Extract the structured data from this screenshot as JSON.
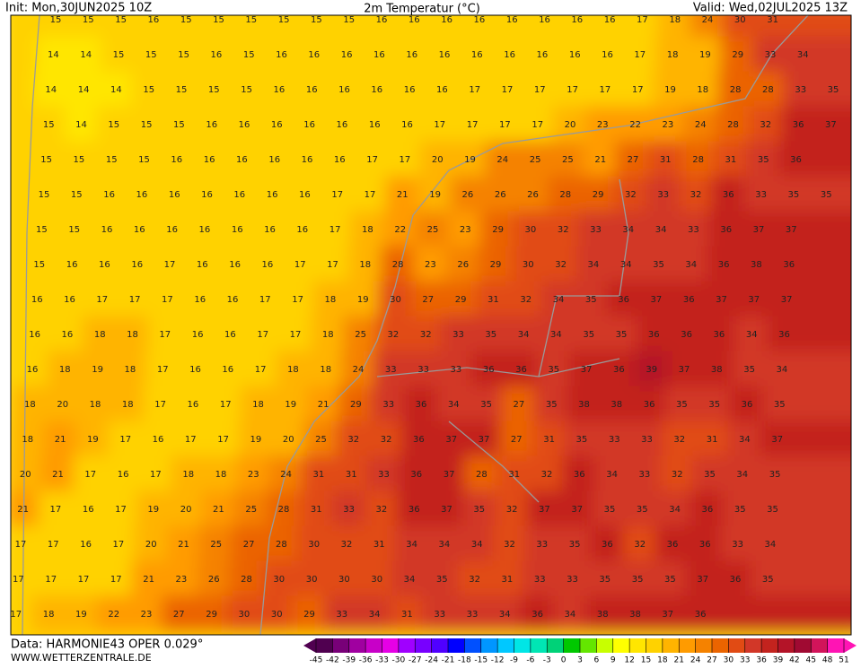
{
  "header": {
    "init": "Init: Mon,30JUN2025 10Z",
    "title": "2m Temperatur (°C)",
    "valid": "Valid: Wed,02JUL2025 13Z"
  },
  "field": {
    "rows": [
      [
        15,
        15,
        15,
        16,
        15,
        15,
        15,
        15,
        15,
        15,
        16,
        16,
        16,
        16,
        16,
        16,
        16,
        16,
        17,
        18,
        24,
        30,
        31
      ],
      [
        14,
        14,
        15,
        15,
        15,
        16,
        15,
        16,
        16,
        16,
        16,
        16,
        16,
        16,
        16,
        16,
        16,
        16,
        17,
        18,
        19,
        29,
        33,
        34
      ],
      [
        14,
        14,
        14,
        15,
        15,
        15,
        15,
        16,
        16,
        16,
        16,
        16,
        16,
        17,
        17,
        17,
        17,
        17,
        17,
        19,
        18,
        28,
        28,
        33,
        35
      ],
      [
        15,
        14,
        15,
        15,
        15,
        16,
        16,
        16,
        16,
        16,
        16,
        16,
        17,
        17,
        17,
        17,
        20,
        23,
        22,
        23,
        24,
        28,
        32,
        36,
        37
      ],
      [
        15,
        15,
        15,
        15,
        16,
        16,
        16,
        16,
        16,
        16,
        17,
        17,
        20,
        19,
        24,
        25,
        25,
        21,
        27,
        31,
        28,
        31,
        35,
        36
      ],
      [
        15,
        15,
        16,
        16,
        16,
        16,
        16,
        16,
        16,
        17,
        17,
        21,
        19,
        26,
        26,
        26,
        28,
        29,
        32,
        33,
        32,
        36,
        33,
        35,
        35
      ],
      [
        15,
        15,
        16,
        16,
        16,
        16,
        16,
        16,
        16,
        17,
        18,
        22,
        25,
        23,
        29,
        30,
        32,
        33,
        34,
        34,
        33,
        36,
        37,
        37
      ],
      [
        15,
        16,
        16,
        16,
        17,
        16,
        16,
        16,
        17,
        17,
        18,
        28,
        23,
        26,
        29,
        30,
        32,
        34,
        34,
        35,
        34,
        36,
        38,
        36
      ],
      [
        16,
        16,
        17,
        17,
        17,
        16,
        16,
        17,
        17,
        18,
        19,
        30,
        27,
        29,
        31,
        32,
        34,
        35,
        36,
        37,
        36,
        37,
        37,
        37
      ],
      [
        16,
        16,
        18,
        18,
        17,
        16,
        16,
        17,
        17,
        18,
        25,
        32,
        32,
        33,
        35,
        34,
        34,
        35,
        35,
        36,
        36,
        36,
        34,
        36
      ],
      [
        16,
        18,
        19,
        18,
        17,
        16,
        16,
        17,
        18,
        18,
        24,
        33,
        33,
        33,
        36,
        36,
        35,
        37,
        36,
        39,
        37,
        38,
        35,
        34
      ],
      [
        18,
        20,
        18,
        18,
        17,
        16,
        17,
        18,
        19,
        21,
        29,
        33,
        36,
        34,
        35,
        27,
        35,
        38,
        38,
        36,
        35,
        35,
        36,
        35
      ],
      [
        18,
        21,
        19,
        17,
        16,
        17,
        17,
        19,
        20,
        25,
        32,
        32,
        36,
        37,
        37,
        27,
        31,
        35,
        33,
        33,
        32,
        31,
        34,
        37
      ],
      [
        20,
        21,
        17,
        16,
        17,
        18,
        18,
        23,
        24,
        31,
        31,
        33,
        36,
        37,
        28,
        31,
        32,
        36,
        34,
        33,
        32,
        35,
        34,
        35
      ],
      [
        21,
        17,
        16,
        17,
        19,
        20,
        21,
        25,
        28,
        31,
        33,
        32,
        36,
        37,
        35,
        32,
        37,
        37,
        35,
        35,
        34,
        36,
        35,
        35
      ],
      [
        17,
        17,
        16,
        17,
        20,
        21,
        25,
        27,
        28,
        30,
        32,
        31,
        34,
        34,
        34,
        32,
        33,
        35,
        36,
        32,
        36,
        36,
        33,
        34
      ],
      [
        17,
        17,
        17,
        17,
        21,
        23,
        26,
        28,
        30,
        30,
        30,
        30,
        34,
        35,
        32,
        31,
        33,
        33,
        35,
        35,
        35,
        37,
        36,
        35
      ],
      [
        17,
        18,
        19,
        22,
        23,
        27,
        29,
        30,
        30,
        29,
        33,
        34,
        31,
        33,
        33,
        34,
        36,
        34,
        38,
        38,
        37,
        36
      ]
    ]
  },
  "colorbar": {
    "ticks": [
      -45,
      -42,
      -39,
      -36,
      -33,
      -30,
      -27,
      -24,
      -21,
      -18,
      -15,
      -12,
      -9,
      -6,
      -3,
      0,
      3,
      6,
      9,
      12,
      15,
      18,
      21,
      24,
      27,
      30,
      33,
      36,
      39,
      42,
      45,
      48,
      51
    ],
    "colors": [
      "#500050",
      "#780078",
      "#a000a0",
      "#c800c8",
      "#e600e6",
      "#a000ff",
      "#7800ff",
      "#5000ff",
      "#0000ff",
      "#0050ff",
      "#0096ff",
      "#00c8ff",
      "#00e6e6",
      "#00e6b4",
      "#00d278",
      "#00c800",
      "#64e600",
      "#c8ff00",
      "#ffff00",
      "#ffe600",
      "#ffd200",
      "#ffb400",
      "#ff9b00",
      "#f58200",
      "#eb6400",
      "#e14b14",
      "#d23728",
      "#c3231e",
      "#b41428",
      "#a00a32",
      "#d2145a",
      "#ff14b4"
    ]
  },
  "footer": {
    "data": "Data: HARMONIE43 OPER 0.029°",
    "site": "WWW.WETTERZENTRALE.DE"
  }
}
